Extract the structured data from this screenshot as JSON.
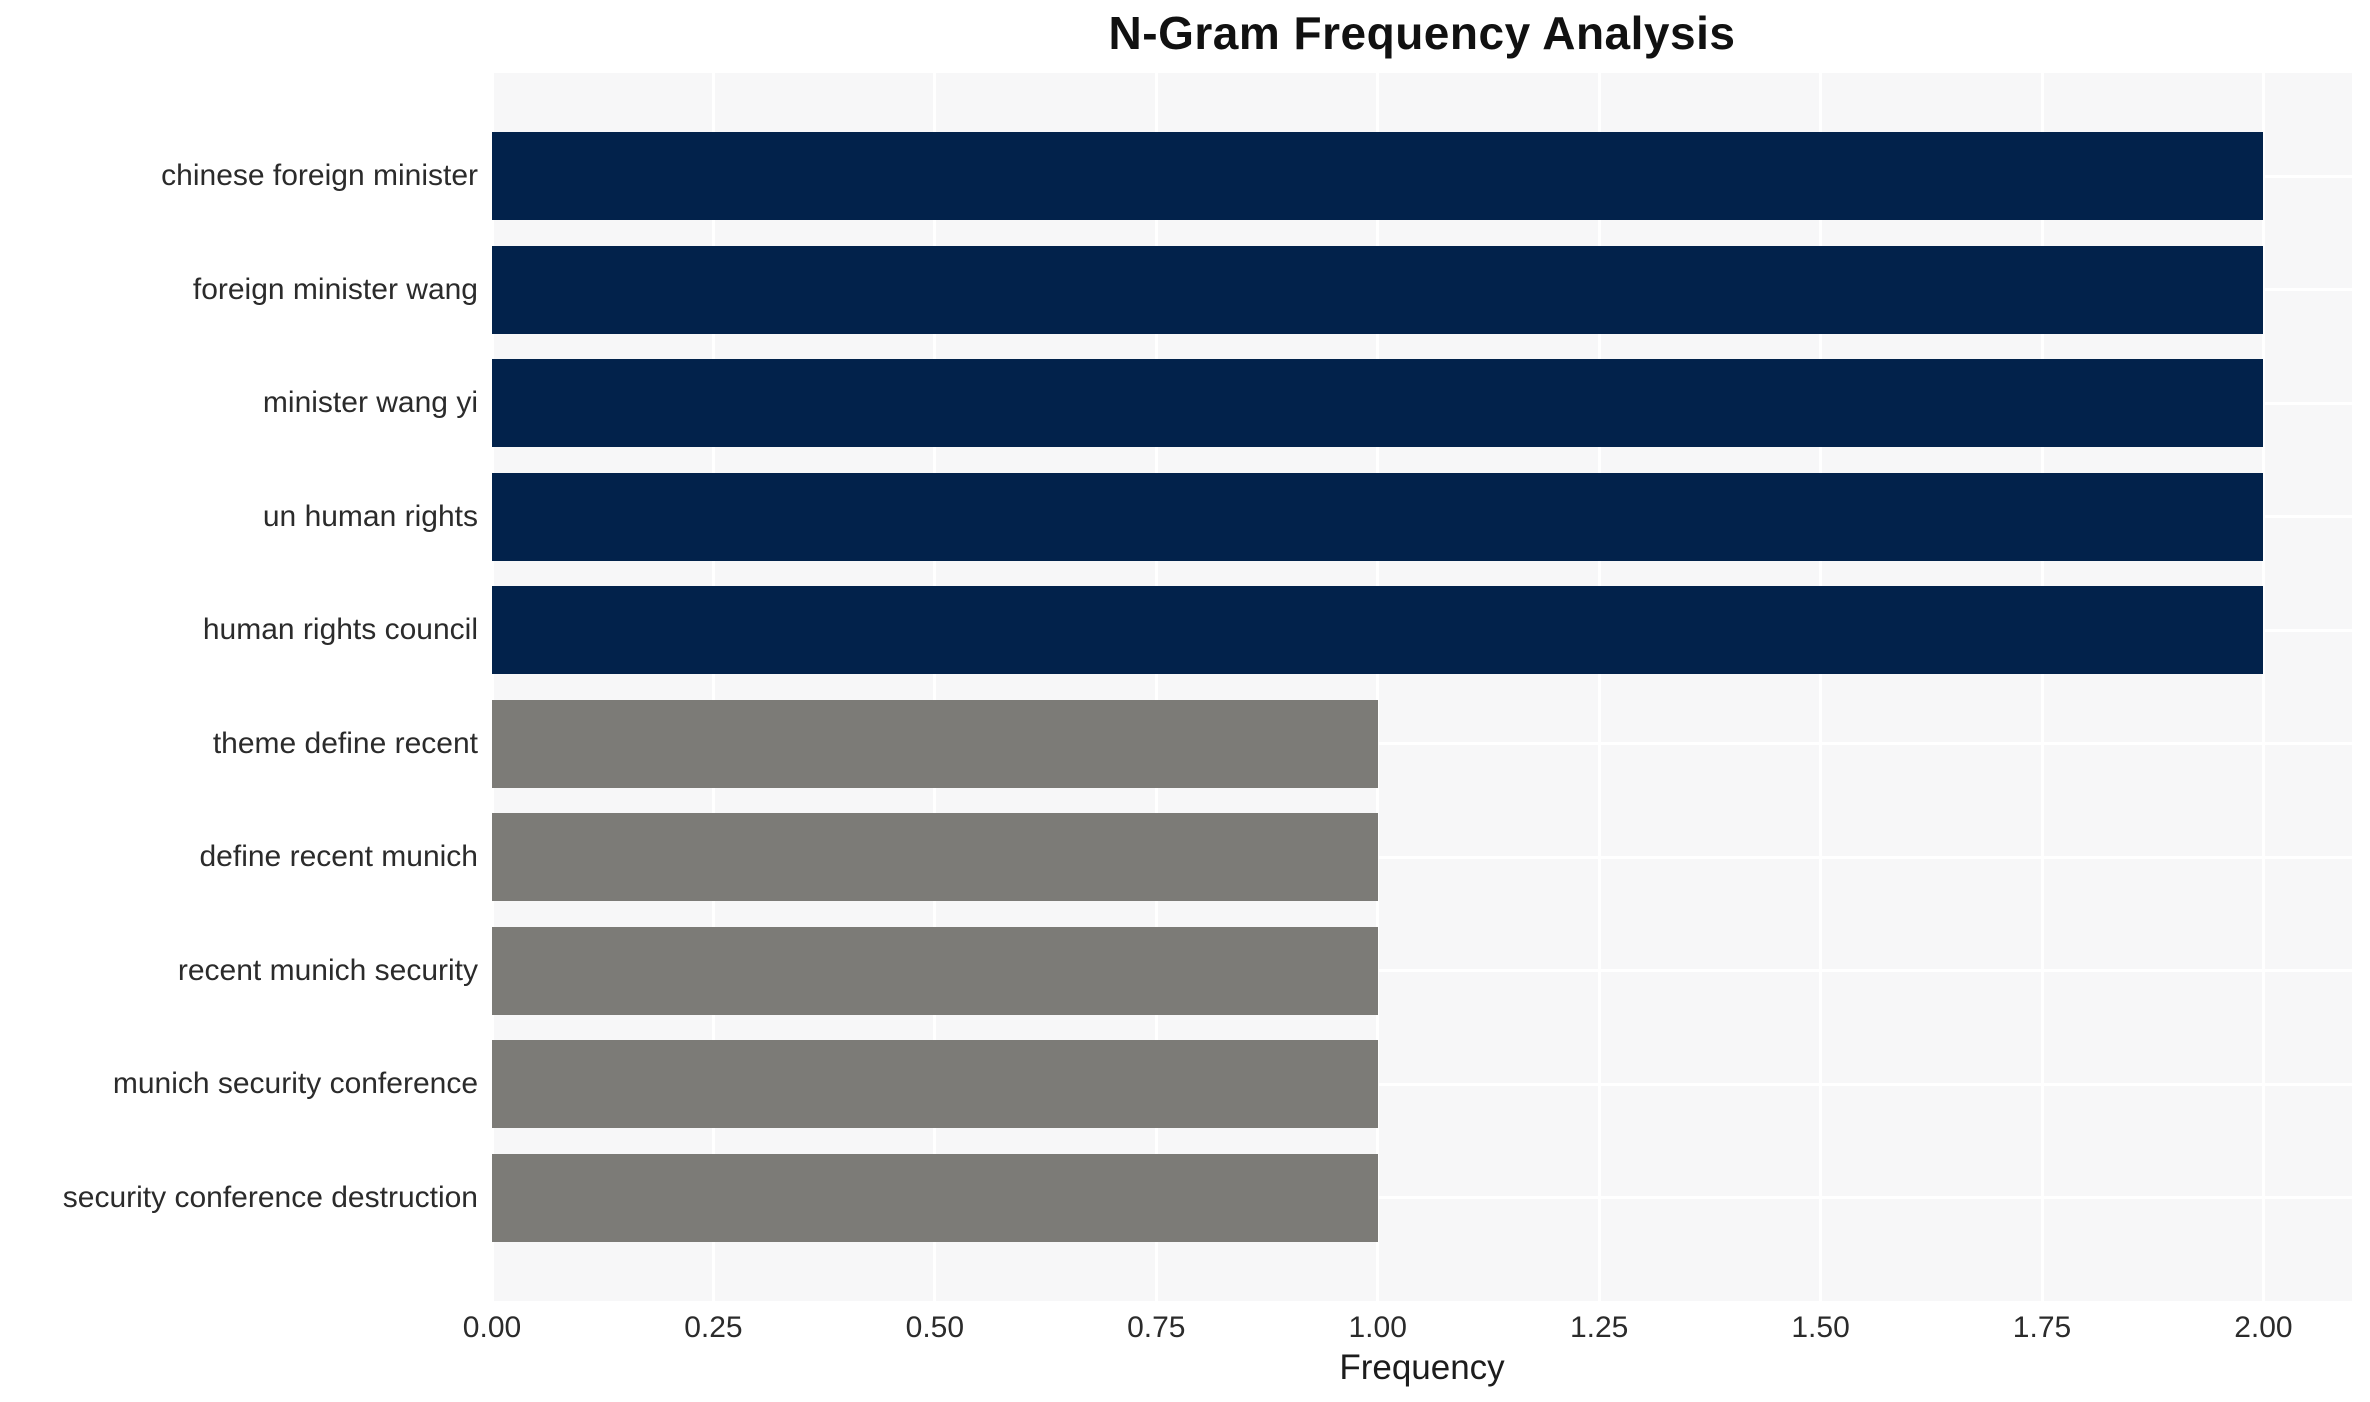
{
  "chart_data": {
    "type": "bar",
    "orientation": "horizontal",
    "title": "N-Gram Frequency Analysis",
    "xlabel": "Frequency",
    "ylabel": "",
    "categories": [
      "chinese foreign minister",
      "foreign minister wang",
      "minister wang yi",
      "un human rights",
      "human rights council",
      "theme define recent",
      "define recent munich",
      "recent munich security",
      "munich security conference",
      "security conference destruction"
    ],
    "values": [
      2,
      2,
      2,
      2,
      2,
      1,
      1,
      1,
      1,
      1
    ],
    "bar_colors": [
      "#02224B",
      "#02224B",
      "#02224B",
      "#02224B",
      "#02224B",
      "#7C7B77",
      "#7C7B77",
      "#7C7B77",
      "#7C7B77",
      "#7C7B77"
    ],
    "xlim": [
      0,
      2.1
    ],
    "xticks": [
      0,
      0.25,
      0.5,
      0.75,
      1.0,
      1.25,
      1.5,
      1.75,
      2.0
    ],
    "xtick_labels": [
      "0.00",
      "0.25",
      "0.50",
      "0.75",
      "1.00",
      "1.25",
      "1.50",
      "1.75",
      "2.00"
    ],
    "grid": true,
    "legend": false,
    "style": {
      "plot_background": "#F7F7F8",
      "grid_color": "#FFFFFF",
      "bar_color_high": "#02224B",
      "bar_color_low": "#7C7B77",
      "title_color": "#111111",
      "text_color": "#2B2B2B"
    }
  }
}
